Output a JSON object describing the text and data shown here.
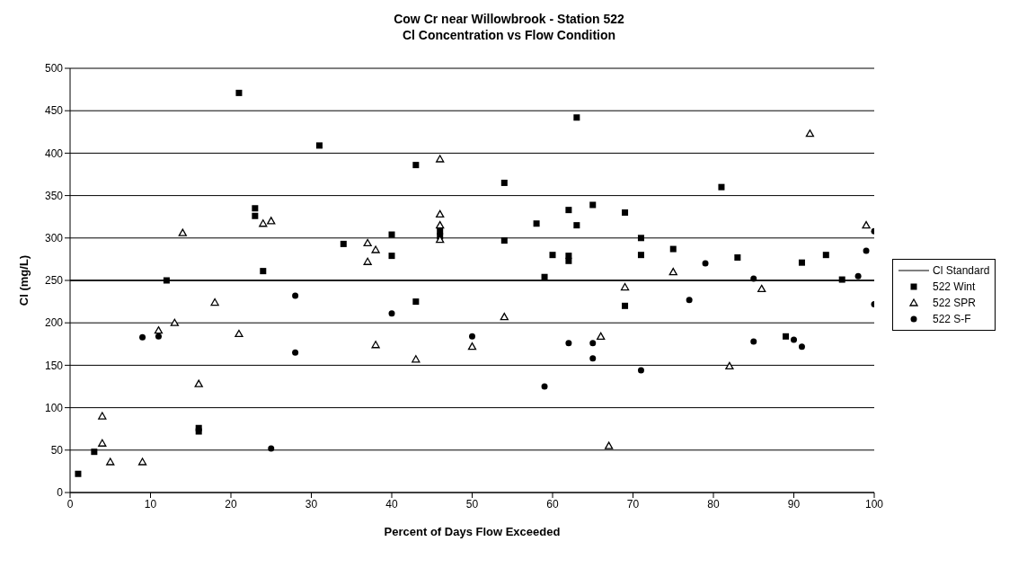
{
  "chart_data": {
    "type": "scatter",
    "title": "Cow Cr near Willowbrook - Station 522\nCl Concentration vs Flow Condition",
    "xlabel": "Percent of Days Flow Exceeded",
    "ylabel": "Cl (mg/L)",
    "xlim": [
      0,
      100
    ],
    "xticks": [
      0,
      10,
      20,
      30,
      40,
      50,
      60,
      70,
      80,
      90,
      100
    ],
    "ylim": [
      0,
      500
    ],
    "yticks": [
      0,
      50,
      100,
      150,
      200,
      250,
      300,
      350,
      400,
      450,
      500
    ],
    "grid": "y",
    "legend": "right",
    "ref_lines": [
      {
        "axis": "y",
        "value": 250,
        "label": "Cl Standard",
        "color": "#000000",
        "line_style": "solid"
      }
    ],
    "series": [
      {
        "name": "522 Wint",
        "color": "#000000",
        "marker": "square",
        "x": [
          1,
          3,
          12,
          16,
          16,
          21,
          23,
          23,
          24,
          31,
          34,
          40,
          40,
          43,
          43,
          46,
          46,
          54,
          54,
          58,
          59,
          60,
          62,
          62,
          62,
          63,
          63,
          65,
          69,
          69,
          71,
          71,
          75,
          81,
          83,
          89,
          91,
          94,
          96
        ],
        "values": [
          22,
          48,
          250,
          72,
          76,
          471,
          335,
          326,
          261,
          409,
          293,
          304,
          279,
          225,
          386,
          308,
          302,
          365,
          297,
          317,
          254,
          280,
          333,
          279,
          273,
          442,
          315,
          339,
          330,
          220,
          300,
          280,
          287,
          360,
          277,
          184,
          271,
          280,
          251
        ]
      },
      {
        "name": "522 SPR",
        "color": "#000000",
        "marker": "triangle",
        "x": [
          4,
          4,
          5,
          9,
          11,
          13,
          14,
          16,
          18,
          21,
          24,
          25,
          37,
          37,
          38,
          38,
          43,
          46,
          46,
          46,
          46,
          50,
          54,
          66,
          67,
          69,
          75,
          82,
          86,
          92,
          99
        ],
        "values": [
          90,
          58,
          36,
          36,
          191,
          200,
          306,
          128,
          224,
          187,
          317,
          320,
          294,
          272,
          286,
          174,
          157,
          393,
          328,
          315,
          298,
          172,
          207,
          184,
          55,
          242,
          260,
          149,
          240,
          423,
          315
        ]
      },
      {
        "name": "522 S-F",
        "color": "#000000",
        "marker": "circle",
        "x": [
          9,
          11,
          25,
          28,
          28,
          40,
          50,
          59,
          62,
          65,
          65,
          71,
          77,
          79,
          85,
          85,
          90,
          91,
          98,
          99,
          100,
          100
        ],
        "values": [
          183,
          184,
          52,
          232,
          165,
          211,
          184,
          125,
          176,
          176,
          158,
          144,
          227,
          270,
          252,
          178,
          180,
          172,
          255,
          285,
          308,
          222
        ]
      }
    ]
  }
}
